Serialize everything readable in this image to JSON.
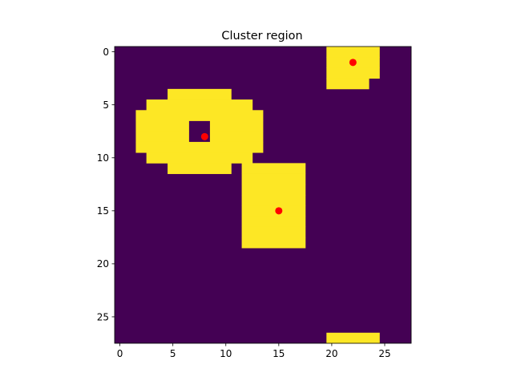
{
  "chart_data": {
    "type": "heatmap",
    "title": "Cluster region",
    "xlabel": "",
    "ylabel": "",
    "grid": false,
    "colormap": "viridis",
    "shape": [
      28,
      28
    ],
    "xlim": [
      -0.5,
      27.5
    ],
    "ylim": [
      27.5,
      -0.5
    ],
    "values": [
      0,
      1
    ],
    "colors": {
      "background": "#440154",
      "foreground": "#fde725",
      "marker": "#ff0000"
    },
    "xticks": [
      0,
      5,
      10,
      15,
      20,
      25
    ],
    "yticks": [
      0,
      5,
      10,
      15,
      20,
      25
    ],
    "x_tick_labels": [
      "0",
      "5",
      "10",
      "15",
      "20",
      "25"
    ],
    "y_tick_labels": [
      "0",
      "5",
      "10",
      "15",
      "20",
      "25"
    ],
    "rows_with_value_1": [
      {
        "row": 0,
        "cols": [
          [
            20,
            24
          ]
        ]
      },
      {
        "row": 1,
        "cols": [
          [
            20,
            24
          ]
        ]
      },
      {
        "row": 2,
        "cols": [
          [
            20,
            24
          ]
        ]
      },
      {
        "row": 3,
        "cols": [
          [
            20,
            23
          ]
        ]
      },
      {
        "row": 4,
        "cols": [
          [
            5,
            10
          ]
        ]
      },
      {
        "row": 5,
        "cols": [
          [
            3,
            12
          ]
        ]
      },
      {
        "row": 6,
        "cols": [
          [
            2,
            13
          ]
        ]
      },
      {
        "row": 7,
        "cols": [
          [
            2,
            6
          ],
          [
            9,
            13
          ]
        ]
      },
      {
        "row": 8,
        "cols": [
          [
            2,
            6
          ],
          [
            9,
            13
          ]
        ]
      },
      {
        "row": 9,
        "cols": [
          [
            2,
            13
          ]
        ]
      },
      {
        "row": 10,
        "cols": [
          [
            3,
            12
          ]
        ]
      },
      {
        "row": 11,
        "cols": [
          [
            5,
            10
          ],
          [
            12,
            17
          ]
        ]
      },
      {
        "row": 12,
        "cols": [
          [
            12,
            17
          ]
        ]
      },
      {
        "row": 13,
        "cols": [
          [
            12,
            17
          ]
        ]
      },
      {
        "row": 14,
        "cols": [
          [
            12,
            17
          ]
        ]
      },
      {
        "row": 15,
        "cols": [
          [
            12,
            17
          ]
        ]
      },
      {
        "row": 16,
        "cols": [
          [
            12,
            17
          ]
        ]
      },
      {
        "row": 17,
        "cols": [
          [
            12,
            17
          ]
        ]
      },
      {
        "row": 18,
        "cols": [
          [
            12,
            17
          ]
        ]
      },
      {
        "row": 27,
        "cols": [
          [
            20,
            24
          ]
        ]
      }
    ],
    "points": [
      {
        "x": 22,
        "y": 1
      },
      {
        "x": 8,
        "y": 8
      },
      {
        "x": 15,
        "y": 15
      }
    ]
  }
}
